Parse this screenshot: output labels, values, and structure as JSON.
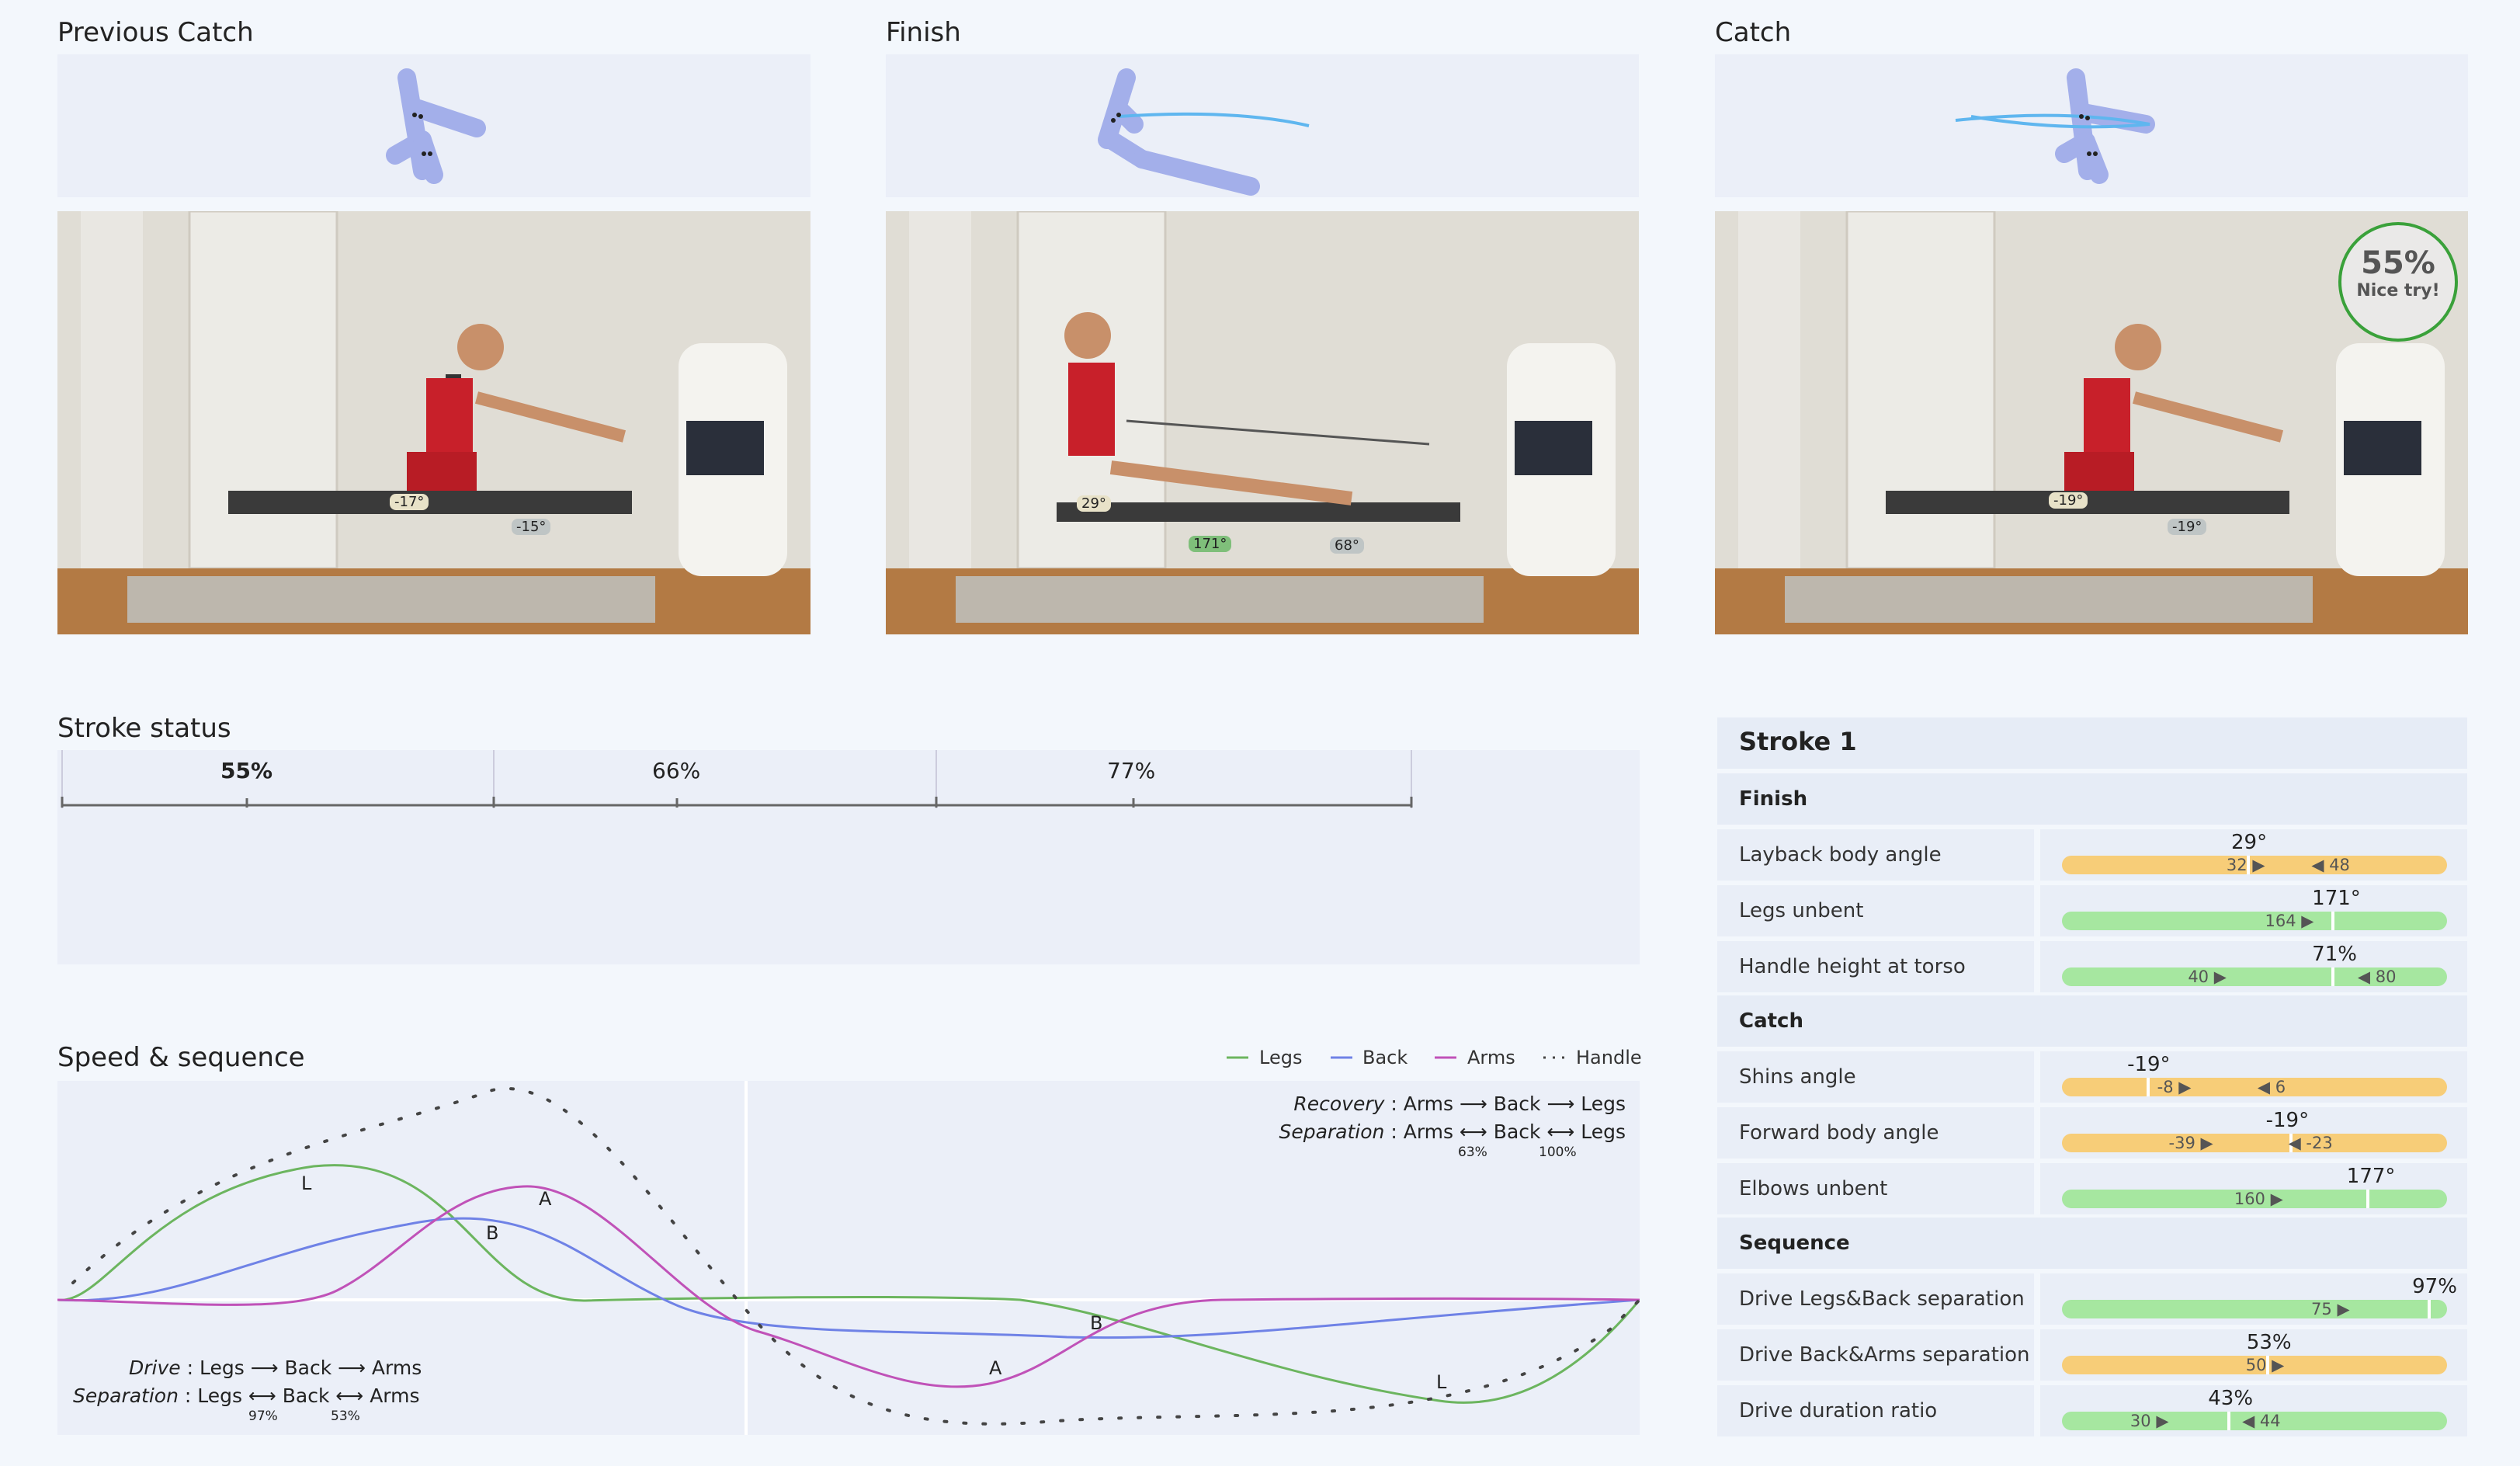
{
  "views": [
    {
      "title": "Previous Catch",
      "angles": [
        "-17°",
        "-15°"
      ]
    },
    {
      "title": "Finish",
      "angles": [
        "29°",
        "171°",
        "68°"
      ]
    },
    {
      "title": "Catch",
      "angles": [
        "-19°",
        "-19°"
      ]
    }
  ],
  "score": {
    "percent": "55%",
    "message": "Nice try!"
  },
  "stroke_status": {
    "title": "Stroke status",
    "labels": [
      "55%",
      "66%",
      "77%"
    ]
  },
  "speed_sequence": {
    "title": "Speed & sequence",
    "legend": [
      "Legs",
      "Back",
      "Arms",
      "Handle"
    ],
    "recovery_label": "Recovery",
    "separation_label": "Separation",
    "drive_label": "Drive",
    "recovery_seq": [
      "Arms",
      "Back",
      "Legs"
    ],
    "recovery_sep": [
      "Arms",
      "Back",
      "Legs"
    ],
    "recovery_sep_values": [
      "63%",
      "100%"
    ],
    "drive_seq": [
      "Legs",
      "Back",
      "Arms"
    ],
    "drive_sep": [
      "Legs",
      "Back",
      "Arms"
    ],
    "drive_sep_values": [
      "97%",
      "53%"
    ],
    "curve_labels": [
      "L",
      "B",
      "A",
      "B",
      "A",
      "L"
    ]
  },
  "metrics": {
    "stroke_title": "Stroke 1",
    "finish_header": "Finish",
    "catch_header": "Catch",
    "sequence_header": "Sequence",
    "rows": [
      {
        "label": "Layback body angle",
        "value": "29°",
        "color": "orange",
        "marker": 0.48,
        "low": "32",
        "high": "48",
        "low_pos": 0.52,
        "high_pos": 0.66,
        "value_pos": 0.5
      },
      {
        "label": "Legs unbent",
        "value": "171°",
        "color": "green",
        "marker": 0.7,
        "low": "164",
        "low_pos": 0.62,
        "value_pos": 0.71
      },
      {
        "label": "Handle height at torso",
        "value": "71%",
        "color": "green",
        "marker": 0.7,
        "low": "40",
        "high": "80",
        "low_pos": 0.42,
        "high_pos": 0.78,
        "value_pos": 0.71
      },
      {
        "label": "Shins angle",
        "value": "-19°",
        "color": "orange",
        "marker": 0.22,
        "low": "-8",
        "high": "6",
        "low_pos": 0.34,
        "high_pos": 0.52,
        "value_pos": 0.23
      },
      {
        "label": "Forward body angle",
        "value": "-19°",
        "color": "orange",
        "marker": 0.59,
        "low": "-39",
        "high": "-23",
        "low_pos": 0.37,
        "high_pos": 0.6,
        "value_pos": 0.59
      },
      {
        "label": "Elbows unbent",
        "value": "177°",
        "color": "green",
        "marker": 0.79,
        "low": "160",
        "low_pos": 0.54,
        "value_pos": 0.8
      },
      {
        "label": "Drive Legs&Back separation",
        "value": "97%",
        "color": "green",
        "marker": 0.95,
        "low": "75",
        "low_pos": 0.74,
        "value_pos": 0.97
      },
      {
        "label": "Drive Back&Arms separation",
        "value": "53%",
        "color": "orange",
        "marker": 0.53,
        "low": "50",
        "low_pos": 0.57,
        "value_pos": 0.54
      },
      {
        "label": "Drive duration ratio",
        "value": "43%",
        "color": "green",
        "marker": 0.43,
        "low": "30",
        "high": "44",
        "low_pos": 0.27,
        "high_pos": 0.48,
        "value_pos": 0.44
      }
    ]
  }
}
